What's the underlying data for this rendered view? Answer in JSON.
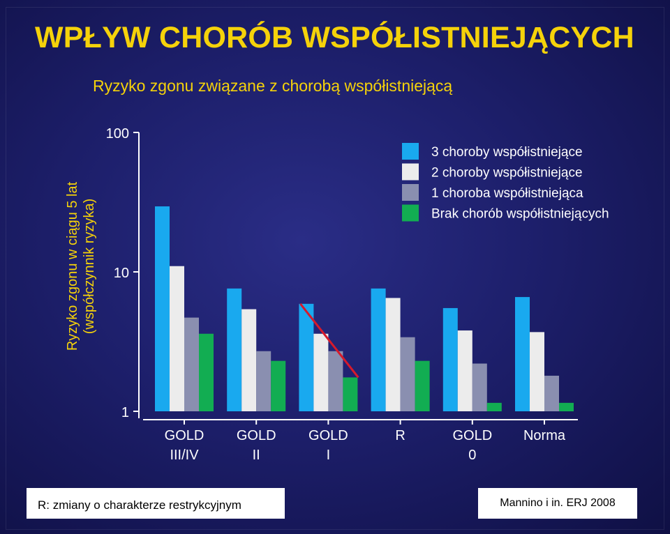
{
  "slide": {
    "title": "WPŁYW CHORÓB WSPÓŁISTNIEJĄCYCH",
    "subtitle": "Ryzyko zgonu związane z chorobą współistniejącą",
    "ylabel_line1": "Ryzyko zgonu w ciągu 5 lat",
    "ylabel_line2": "(współczynnik ryzyka)",
    "footnote": "R: zmiany o charakterze restrykcyjnym",
    "citation": "Mannino i in. ERJ 2008"
  },
  "colors": {
    "title": "#f5d20a",
    "background": "#1d1f6b",
    "trend_line": "#d61a2b"
  },
  "chart_data": {
    "type": "bar",
    "y_scale": "log",
    "ylim": [
      1,
      100
    ],
    "y_ticks": [
      "1",
      "10",
      "100"
    ],
    "grid": false,
    "legend_position": "top-right",
    "categories": [
      [
        "GOLD",
        "III/IV"
      ],
      [
        "GOLD",
        "II"
      ],
      [
        "GOLD",
        "I"
      ],
      [
        "R"
      ],
      [
        "GOLD",
        "0"
      ],
      [
        "Norma"
      ]
    ],
    "series": [
      {
        "name": "3 choroby współistniejące",
        "color": "#19a9ef",
        "values": [
          29.5,
          7.6,
          5.9,
          7.6,
          5.5,
          6.6
        ]
      },
      {
        "name": "2 choroby współistniejące",
        "color": "#ececec",
        "values": [
          11.0,
          5.4,
          3.6,
          6.5,
          3.8,
          3.7
        ]
      },
      {
        "name": "1 choroba współistniejąca",
        "color": "#8a8fb0",
        "values": [
          4.7,
          2.7,
          2.7,
          3.4,
          2.2,
          1.8
        ]
      },
      {
        "name": "Brak chorób współistniejących",
        "color": "#12ad52",
        "values": [
          3.6,
          2.3,
          1.75,
          2.3,
          1.15,
          1.15
        ]
      }
    ],
    "annotations": [
      {
        "type": "trend_line",
        "category_index": 2,
        "from_series": 0,
        "to_series": 3,
        "color": "#d61a2b"
      }
    ]
  }
}
